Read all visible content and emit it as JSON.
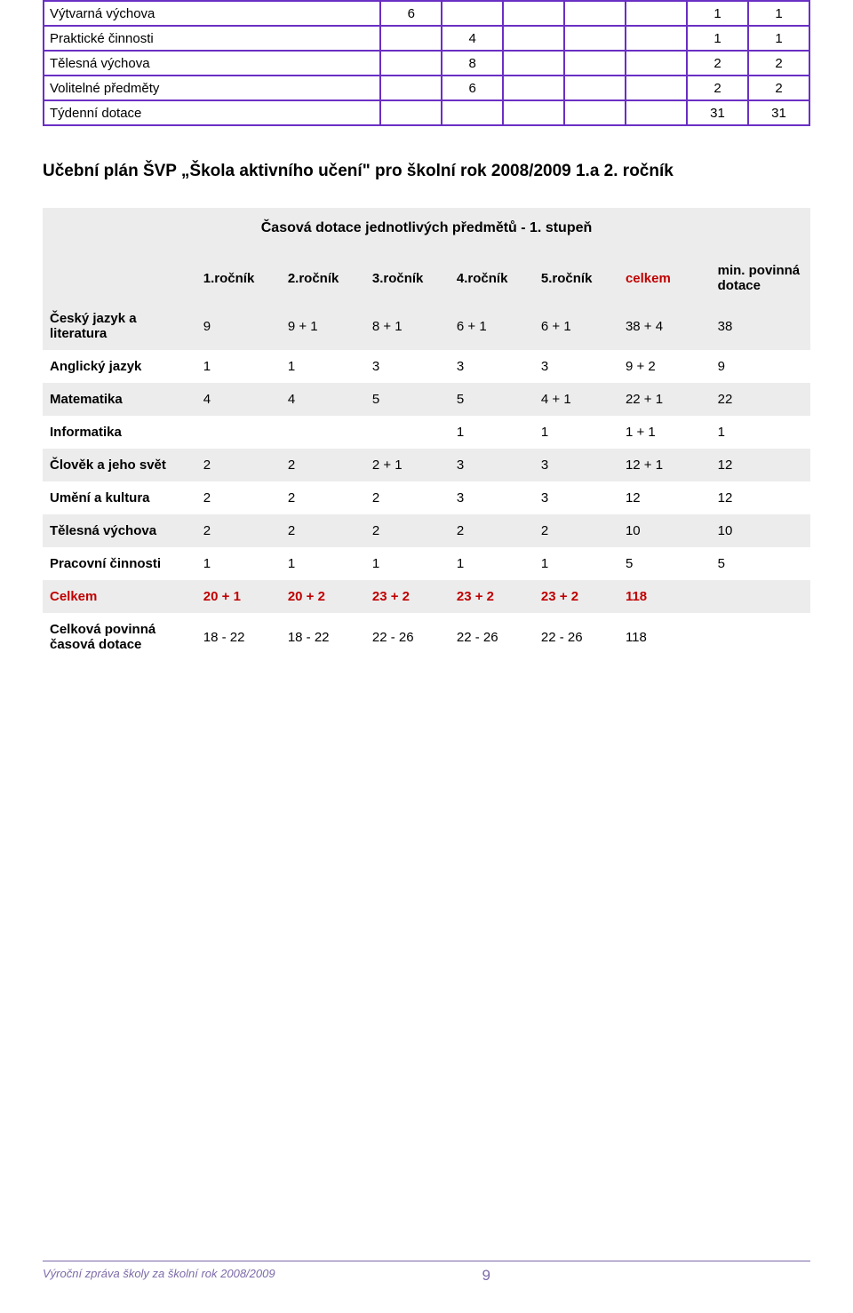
{
  "colors": {
    "t1_border": "#6a2fc4",
    "zebra": "#ececec",
    "accent_red": "#c00000",
    "footer": "#7d6aa8"
  },
  "table1": {
    "layout": {
      "col_widths_pct": [
        44,
        8,
        8,
        8,
        8,
        8,
        8,
        8
      ]
    },
    "rows": [
      {
        "label": "Výtvarná výchova",
        "cells": [
          "6",
          "",
          "",
          "",
          "",
          "1",
          "1"
        ]
      },
      {
        "label": "Praktické činnosti",
        "cells": [
          "",
          "4",
          "",
          "",
          "",
          "1",
          "1"
        ]
      },
      {
        "label": "Tělesná výchova",
        "cells": [
          "",
          "8",
          "",
          "",
          "",
          "2",
          "2"
        ]
      },
      {
        "label": "Volitelné předměty",
        "cells": [
          "",
          "6",
          "",
          "",
          "",
          "2",
          "2"
        ]
      },
      {
        "label": "Týdenní dotace",
        "cells": [
          "",
          "",
          "",
          "",
          "",
          "31",
          "31"
        ]
      }
    ]
  },
  "heading": "Učební plán ŠVP „Škola aktivního učení\" pro školní rok 2008/2009 1.a 2. ročník",
  "table2": {
    "caption": "Časová dotace jednotlivých předmětů - 1. stupeň",
    "layout": {
      "col_widths_pct": [
        20,
        11,
        11,
        11,
        11,
        11,
        12,
        13
      ]
    },
    "headers": [
      "",
      "1.ročník",
      "2.ročník",
      "3.ročník",
      "4.ročník",
      "5.ročník",
      "celkem",
      "min. povinná dotace"
    ],
    "rows": [
      {
        "label": "Český jazyk a literatura",
        "cells": [
          "9",
          "9 + 1",
          "8 + 1",
          "6 + 1",
          "6 + 1",
          "38 + 4",
          "38"
        ]
      },
      {
        "label": "Anglický jazyk",
        "cells": [
          "1",
          "1",
          "3",
          "3",
          "3",
          "9 + 2",
          "9"
        ]
      },
      {
        "label": "Matematika",
        "cells": [
          "4",
          "4",
          "5",
          "5",
          "4 + 1",
          "22 + 1",
          "22"
        ]
      },
      {
        "label": "Informatika",
        "cells": [
          "",
          "",
          "",
          "1",
          "1",
          "1 + 1",
          "1"
        ]
      },
      {
        "label": "Člověk a jeho svět",
        "cells": [
          "2",
          "2",
          "2 + 1",
          "3",
          "3",
          "12 + 1",
          "12"
        ]
      },
      {
        "label": "Umění a kultura",
        "cells": [
          "2",
          "2",
          "2",
          "3",
          "3",
          "12",
          "12"
        ]
      },
      {
        "label": "Tělesná výchova",
        "cells": [
          "2",
          "2",
          "2",
          "2",
          "2",
          "10",
          "10"
        ]
      },
      {
        "label": "Pracovní činnosti",
        "cells": [
          "1",
          "1",
          "1",
          "1",
          "1",
          "5",
          "5"
        ]
      },
      {
        "label": "Celkem",
        "cells": [
          "20 + 1",
          "20 + 2",
          "23 + 2",
          "23 + 2",
          "23 + 2",
          "118",
          ""
        ],
        "type": "celkem"
      },
      {
        "label": "Celková povinná časová dotace",
        "cells": [
          "18 - 22",
          "18 - 22",
          "22 - 26",
          "22 - 26",
          "22 - 26",
          "118",
          ""
        ]
      }
    ]
  },
  "footer": {
    "text": "Výroční zpráva školy za školní rok 2008/2009",
    "page": "9"
  }
}
